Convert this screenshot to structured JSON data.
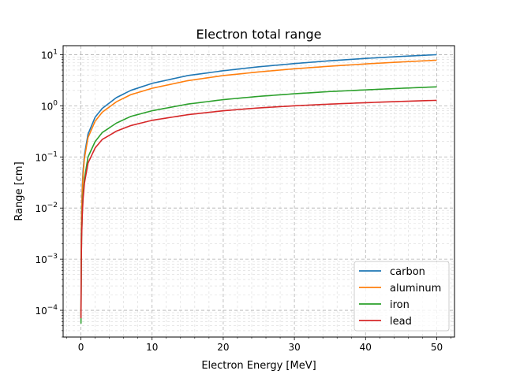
{
  "chart_data": {
    "type": "line",
    "title": "Electron total range",
    "xlabel": "Electron Energy [MeV]",
    "ylabel": "Range [cm]",
    "xlim": [
      -2.5,
      52.5
    ],
    "ylim": [
      3e-05,
      15
    ],
    "yscale": "log",
    "grid": "major and minor, dashed",
    "legend_position": "lower right",
    "x_ticks": [
      0,
      10,
      20,
      30,
      40,
      50
    ],
    "x_tick_labels": [
      "0",
      "10",
      "20",
      "30",
      "40",
      "50"
    ],
    "y_ticks": [
      0.0001,
      0.001,
      0.01,
      0.1,
      1,
      10
    ],
    "y_tick_labels": [
      {
        "base": "10",
        "exp": "−4"
      },
      {
        "base": "10",
        "exp": "−3"
      },
      {
        "base": "10",
        "exp": "−2"
      },
      {
        "base": "10",
        "exp": "−1"
      },
      {
        "base": "10",
        "exp": "0"
      },
      {
        "base": "10",
        "exp": "1"
      }
    ],
    "series": [
      {
        "name": "carbon",
        "color": "#1f77b4",
        "x": [
          0.01,
          0.05,
          0.1,
          0.2,
          0.3,
          0.5,
          1,
          2,
          3,
          5,
          7,
          10,
          15,
          20,
          25,
          30,
          35,
          40,
          45,
          50
        ],
        "y": [
          7e-05,
          0.0025,
          0.0085,
          0.027,
          0.052,
          0.11,
          0.28,
          0.6,
          0.89,
          1.45,
          2.0,
          2.75,
          3.9,
          4.85,
          5.8,
          6.7,
          7.6,
          8.45,
          9.25,
          10.0
        ]
      },
      {
        "name": "aluminum",
        "color": "#ff7f0e",
        "x": [
          0.01,
          0.05,
          0.1,
          0.2,
          0.3,
          0.5,
          1,
          2,
          3,
          5,
          7,
          10,
          15,
          20,
          25,
          30,
          35,
          40,
          45,
          50
        ],
        "y": [
          8e-05,
          0.0022,
          0.0074,
          0.023,
          0.045,
          0.095,
          0.24,
          0.5,
          0.75,
          1.2,
          1.65,
          2.2,
          3.1,
          3.9,
          4.6,
          5.3,
          5.95,
          6.6,
          7.2,
          7.8
        ]
      },
      {
        "name": "iron",
        "color": "#2ca02c",
        "x": [
          0.01,
          0.05,
          0.1,
          0.2,
          0.3,
          0.5,
          1,
          2,
          3,
          5,
          7,
          10,
          15,
          20,
          25,
          30,
          35,
          40,
          45,
          50
        ],
        "y": [
          5.5e-05,
          0.0009,
          0.003,
          0.009,
          0.018,
          0.038,
          0.1,
          0.2,
          0.3,
          0.46,
          0.62,
          0.8,
          1.08,
          1.32,
          1.53,
          1.72,
          1.9,
          2.05,
          2.2,
          2.35
        ]
      },
      {
        "name": "lead",
        "color": "#d62728",
        "x": [
          0.01,
          0.05,
          0.1,
          0.2,
          0.3,
          0.5,
          1,
          2,
          3,
          5,
          7,
          10,
          15,
          20,
          25,
          30,
          35,
          40,
          45,
          50
        ],
        "y": [
          7e-05,
          0.0008,
          0.0027,
          0.0078,
          0.015,
          0.031,
          0.076,
          0.15,
          0.22,
          0.32,
          0.41,
          0.52,
          0.67,
          0.8,
          0.91,
          1.0,
          1.08,
          1.15,
          1.22,
          1.28
        ]
      }
    ]
  }
}
